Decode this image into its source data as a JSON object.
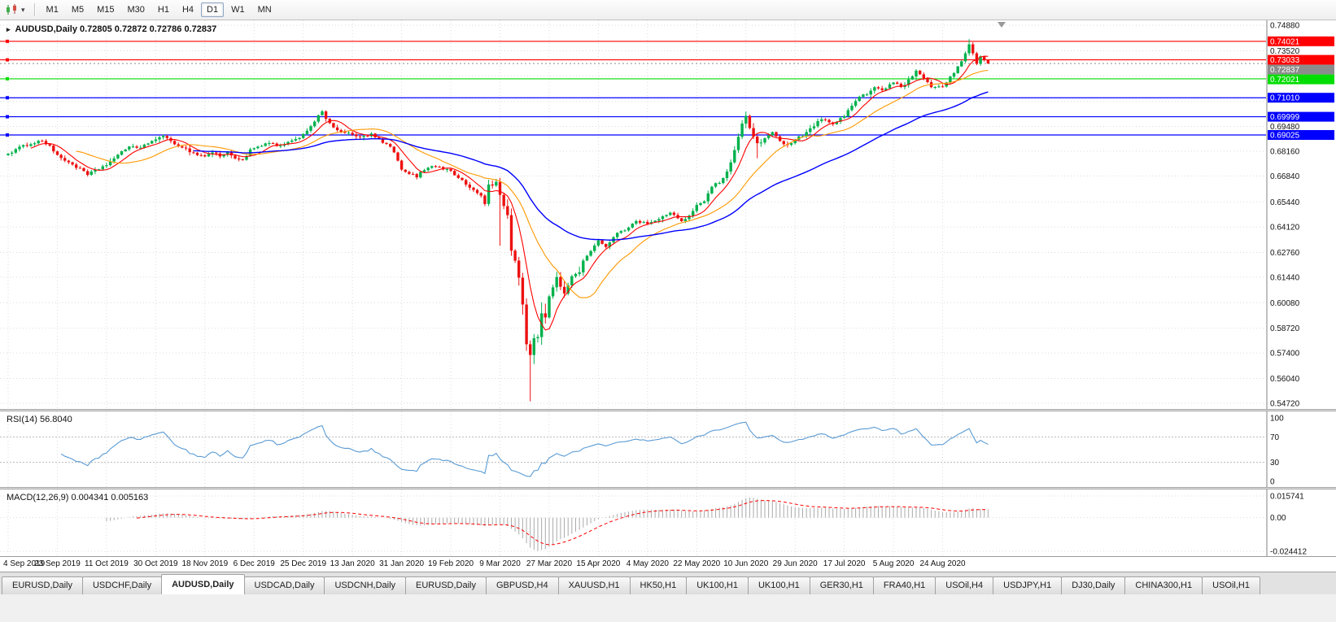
{
  "colors": {
    "up": "#00B14C",
    "down": "#ED1010",
    "ma_fast": "#FF0000",
    "ma_mid": "#FF9900",
    "ma_slow": "#0000FF",
    "rsi": "#5A9BD4",
    "macd_hist": "#A9A9A9",
    "macd_signal": "#FF0000",
    "grid": "#DCDCDC",
    "badge_current": "#8C8C8C"
  },
  "toolbar": {
    "chart_icon": "candlestick-chart",
    "dropdown_glyph": "▾",
    "one_click_glyph": "▸",
    "timeframes": [
      {
        "label": "M1",
        "active": false
      },
      {
        "label": "M5",
        "active": false
      },
      {
        "label": "M15",
        "active": false
      },
      {
        "label": "M30",
        "active": false
      },
      {
        "label": "H1",
        "active": false
      },
      {
        "label": "H4",
        "active": false
      },
      {
        "label": "D1",
        "active": true
      },
      {
        "label": "W1",
        "active": false
      },
      {
        "label": "MN",
        "active": false
      }
    ]
  },
  "chart": {
    "symbol": "AUDUSD",
    "period": "Daily",
    "title_full": "AUDUSD,Daily 0.72805 0.72872 0.72786 0.72837",
    "ohlc": {
      "open": "0.72805",
      "high": "0.72872",
      "low": "0.72786",
      "close": "0.72837"
    },
    "price_scale": [
      {
        "text": "0.74880",
        "value": 0.7488
      },
      {
        "text": "0.73520",
        "value": 0.7352
      },
      {
        "text": "0.69480",
        "value": 0.6948
      },
      {
        "text": "0.68160",
        "value": 0.6816
      },
      {
        "text": "0.66840",
        "value": 0.6684
      },
      {
        "text": "0.65440",
        "value": 0.6544
      },
      {
        "text": "0.64120",
        "value": 0.6412
      },
      {
        "text": "0.62760",
        "value": 0.6276
      },
      {
        "text": "0.61440",
        "value": 0.6144
      },
      {
        "text": "0.60080",
        "value": 0.6008
      },
      {
        "text": "0.58720",
        "value": 0.5872
      },
      {
        "text": "0.57400",
        "value": 0.574
      },
      {
        "text": "0.56040",
        "value": 0.5604
      },
      {
        "text": "0.54720",
        "value": 0.5472
      }
    ],
    "grid_only_levels": [
      0.7217,
      0.7082
    ],
    "hlines": [
      {
        "label": "0.74021",
        "price": 0.74021,
        "color": "#FF0000"
      },
      {
        "label": "0.73033",
        "price": 0.73033,
        "color": "#FF0000"
      },
      {
        "label": "0.72021",
        "price": 0.72021,
        "color": "#00DD00"
      },
      {
        "label": "0.71010",
        "price": 0.7101,
        "color": "#0000FF"
      },
      {
        "label": "0.69999",
        "price": 0.69999,
        "color": "#0000FF"
      },
      {
        "label": "0.69025",
        "price": 0.69025,
        "color": "#0000FF"
      }
    ],
    "current_price": {
      "label": "0.72837",
      "price": 0.72837
    },
    "date_labels": [
      "4 Sep 2019",
      "23 Sep 2019",
      "11 Oct 2019",
      "30 Oct 2019",
      "18 Nov 2019",
      "6 Dec 2019",
      "25 Dec 2019",
      "13 Jan 2020",
      "31 Jan 2020",
      "19 Feb 2020",
      "9 Mar 2020",
      "27 Mar 2020",
      "15 Apr 2020",
      "4 May 2020",
      "22 May 2020",
      "10 Jun 2020",
      "29 Jun 2020",
      "17 Jul 2020",
      "5 Aug 2020",
      "24 Aug 2020"
    ]
  },
  "rsi": {
    "label_full": "RSI(14) 56.8040",
    "name": "RSI(14)",
    "value": "56.8040",
    "scale_labels": [
      {
        "text": "100",
        "value": 100
      },
      {
        "text": "70",
        "value": 70
      },
      {
        "text": "30",
        "value": 30
      },
      {
        "text": "0",
        "value": 0
      }
    ],
    "dashed_levels": [
      70,
      30
    ]
  },
  "macd": {
    "label_full": "MACD(12,26,9) 0.004341 0.005163",
    "name": "MACD(12,26,9)",
    "macd_value": "0.004341",
    "signal_value": "0.005163",
    "scale_labels": [
      {
        "text": "0.015741",
        "value": 0.015741
      },
      {
        "text": "0.00",
        "value": 0
      },
      {
        "text": "-0.024412",
        "value": -0.024412
      }
    ]
  },
  "tabs": [
    {
      "label": "EURUSD,Daily",
      "active": false
    },
    {
      "label": "USDCHF,Daily",
      "active": false
    },
    {
      "label": "AUDUSD,Daily",
      "active": true
    },
    {
      "label": "USDCAD,Daily",
      "active": false
    },
    {
      "label": "USDCNH,Daily",
      "active": false
    },
    {
      "label": "EURUSD,Daily",
      "active": false
    },
    {
      "label": "GBPUSD,H4",
      "active": false
    },
    {
      "label": "XAUUSD,H1",
      "active": false
    },
    {
      "label": "HK50,H1",
      "active": false
    },
    {
      "label": "UK100,H1",
      "active": false
    },
    {
      "label": "UK100,H1",
      "active": false
    },
    {
      "label": "GER30,H1",
      "active": false
    },
    {
      "label": "FRA40,H1",
      "active": false
    },
    {
      "label": "USOil,H4",
      "active": false
    },
    {
      "label": "USDJPY,H1",
      "active": false
    },
    {
      "label": "DJ30,Daily",
      "active": false
    },
    {
      "label": "CHINA300,H1",
      "active": false
    },
    {
      "label": "USOil,H1",
      "active": false
    }
  ],
  "chart_data": {
    "type": "candlestick",
    "symbol": "AUDUSD",
    "timeframe": "Daily",
    "candles_count": 260,
    "noise": 0.0013,
    "keyframes_close": [
      [
        0,
        0.6803
      ],
      [
        3,
        0.6835
      ],
      [
        6,
        0.6858
      ],
      [
        9,
        0.6872
      ],
      [
        11,
        0.6845
      ],
      [
        13,
        0.679
      ],
      [
        16,
        0.6758
      ],
      [
        19,
        0.672
      ],
      [
        21,
        0.669
      ],
      [
        23,
        0.6712
      ],
      [
        26,
        0.6745
      ],
      [
        29,
        0.6792
      ],
      [
        32,
        0.6845
      ],
      [
        35,
        0.6832
      ],
      [
        37,
        0.6858
      ],
      [
        39,
        0.6885
      ],
      [
        41,
        0.6892
      ],
      [
        43,
        0.6868
      ],
      [
        46,
        0.6838
      ],
      [
        49,
        0.6805
      ],
      [
        52,
        0.6788
      ],
      [
        54,
        0.6812
      ],
      [
        56,
        0.679
      ],
      [
        58,
        0.6805
      ],
      [
        60,
        0.6782
      ],
      [
        62,
        0.6768
      ],
      [
        64,
        0.682
      ],
      [
        66,
        0.6838
      ],
      [
        69,
        0.6858
      ],
      [
        72,
        0.6842
      ],
      [
        75,
        0.6868
      ],
      [
        78,
        0.6905
      ],
      [
        80,
        0.6952
      ],
      [
        82,
        0.7005
      ],
      [
        83,
        0.7022
      ],
      [
        85,
        0.696
      ],
      [
        87,
        0.6932
      ],
      [
        89,
        0.6912
      ],
      [
        91,
        0.6905
      ],
      [
        93,
        0.6888
      ],
      [
        96,
        0.6905
      ],
      [
        99,
        0.6862
      ],
      [
        101,
        0.6838
      ],
      [
        103,
        0.6772
      ],
      [
        104,
        0.6712
      ],
      [
        106,
        0.6695
      ],
      [
        108,
        0.6682
      ],
      [
        110,
        0.6718
      ],
      [
        112,
        0.6742
      ],
      [
        114,
        0.6728
      ],
      [
        117,
        0.6712
      ],
      [
        119,
        0.6675
      ],
      [
        121,
        0.6638
      ],
      [
        123,
        0.6608
      ],
      [
        125,
        0.6578
      ],
      [
        126,
        0.6548
      ],
      [
        127,
        0.6625
      ],
      [
        129,
        0.6648
      ],
      [
        130,
        0.6582
      ],
      [
        131,
        0.6502
      ],
      [
        132,
        0.6482
      ],
      [
        133,
        0.6292
      ],
      [
        134,
        0.6232
      ],
      [
        135,
        0.6158
      ],
      [
        136,
        0.5988
      ],
      [
        137,
        0.5782
      ],
      [
        138,
        0.5748
      ],
      [
        139,
        0.5802
      ],
      [
        140,
        0.5838
      ],
      [
        141,
        0.5962
      ],
      [
        142,
        0.5938
      ],
      [
        143,
        0.6032
      ],
      [
        145,
        0.6128
      ],
      [
        147,
        0.6072
      ],
      [
        149,
        0.6142
      ],
      [
        151,
        0.6188
      ],
      [
        153,
        0.6262
      ],
      [
        156,
        0.6338
      ],
      [
        158,
        0.6302
      ],
      [
        160,
        0.6362
      ],
      [
        163,
        0.6398
      ],
      [
        166,
        0.6448
      ],
      [
        169,
        0.6428
      ],
      [
        172,
        0.6452
      ],
      [
        175,
        0.6492
      ],
      [
        178,
        0.6438
      ],
      [
        180,
        0.6468
      ],
      [
        182,
        0.6532
      ],
      [
        184,
        0.6552
      ],
      [
        186,
        0.6632
      ],
      [
        188,
        0.6648
      ],
      [
        190,
        0.6702
      ],
      [
        192,
        0.6822
      ],
      [
        194,
        0.6958
      ],
      [
        195,
        0.7002
      ],
      [
        196,
        0.6938
      ],
      [
        198,
        0.6858
      ],
      [
        200,
        0.6882
      ],
      [
        202,
        0.6912
      ],
      [
        204,
        0.6868
      ],
      [
        206,
        0.6852
      ],
      [
        208,
        0.6878
      ],
      [
        210,
        0.6902
      ],
      [
        212,
        0.6938
      ],
      [
        214,
        0.6972
      ],
      [
        216,
        0.6988
      ],
      [
        218,
        0.6962
      ],
      [
        221,
        0.7002
      ],
      [
        223,
        0.7062
      ],
      [
        225,
        0.7102
      ],
      [
        227,
        0.7122
      ],
      [
        229,
        0.7158
      ],
      [
        231,
        0.7142
      ],
      [
        234,
        0.7182
      ],
      [
        236,
        0.7158
      ],
      [
        238,
        0.7192
      ],
      [
        240,
        0.7242
      ],
      [
        242,
        0.7198
      ],
      [
        244,
        0.7162
      ],
      [
        247,
        0.7158
      ],
      [
        249,
        0.7208
      ],
      [
        251,
        0.7262
      ],
      [
        253,
        0.7338
      ],
      [
        254,
        0.7382
      ],
      [
        255,
        0.7338
      ],
      [
        256,
        0.7282
      ],
      [
        257,
        0.7322
      ],
      [
        258,
        0.7302
      ],
      [
        259,
        0.72837
      ]
    ],
    "special_wicks": [
      {
        "i": 130,
        "low": 0.6312
      },
      {
        "i": 138,
        "low": 0.5482
      },
      {
        "i": 198,
        "low": 0.6778
      },
      {
        "i": 254,
        "high": 0.7414
      }
    ],
    "volatility_zones": [
      {
        "from": 125,
        "to": 152,
        "mult": 2.8
      },
      {
        "from": 130,
        "to": 142,
        "mult": 3.4
      },
      {
        "from": 192,
        "to": 201,
        "mult": 1.5
      }
    ],
    "moving_averages": [
      {
        "type": "sma",
        "period": 7,
        "color": "#FF0000",
        "width": 1.1
      },
      {
        "type": "sma",
        "period": 19,
        "color": "#FF9900",
        "width": 1.1
      },
      {
        "type": "ema",
        "period": 50,
        "color": "#0000FF",
        "width": 1.4
      }
    ],
    "indicators": [
      {
        "name": "RSI",
        "period": 14,
        "current": 56.804
      },
      {
        "name": "MACD",
        "fast": 12,
        "slow": 26,
        "signal": 9,
        "current_macd": 0.004341,
        "current_signal": 0.005163
      }
    ]
  }
}
